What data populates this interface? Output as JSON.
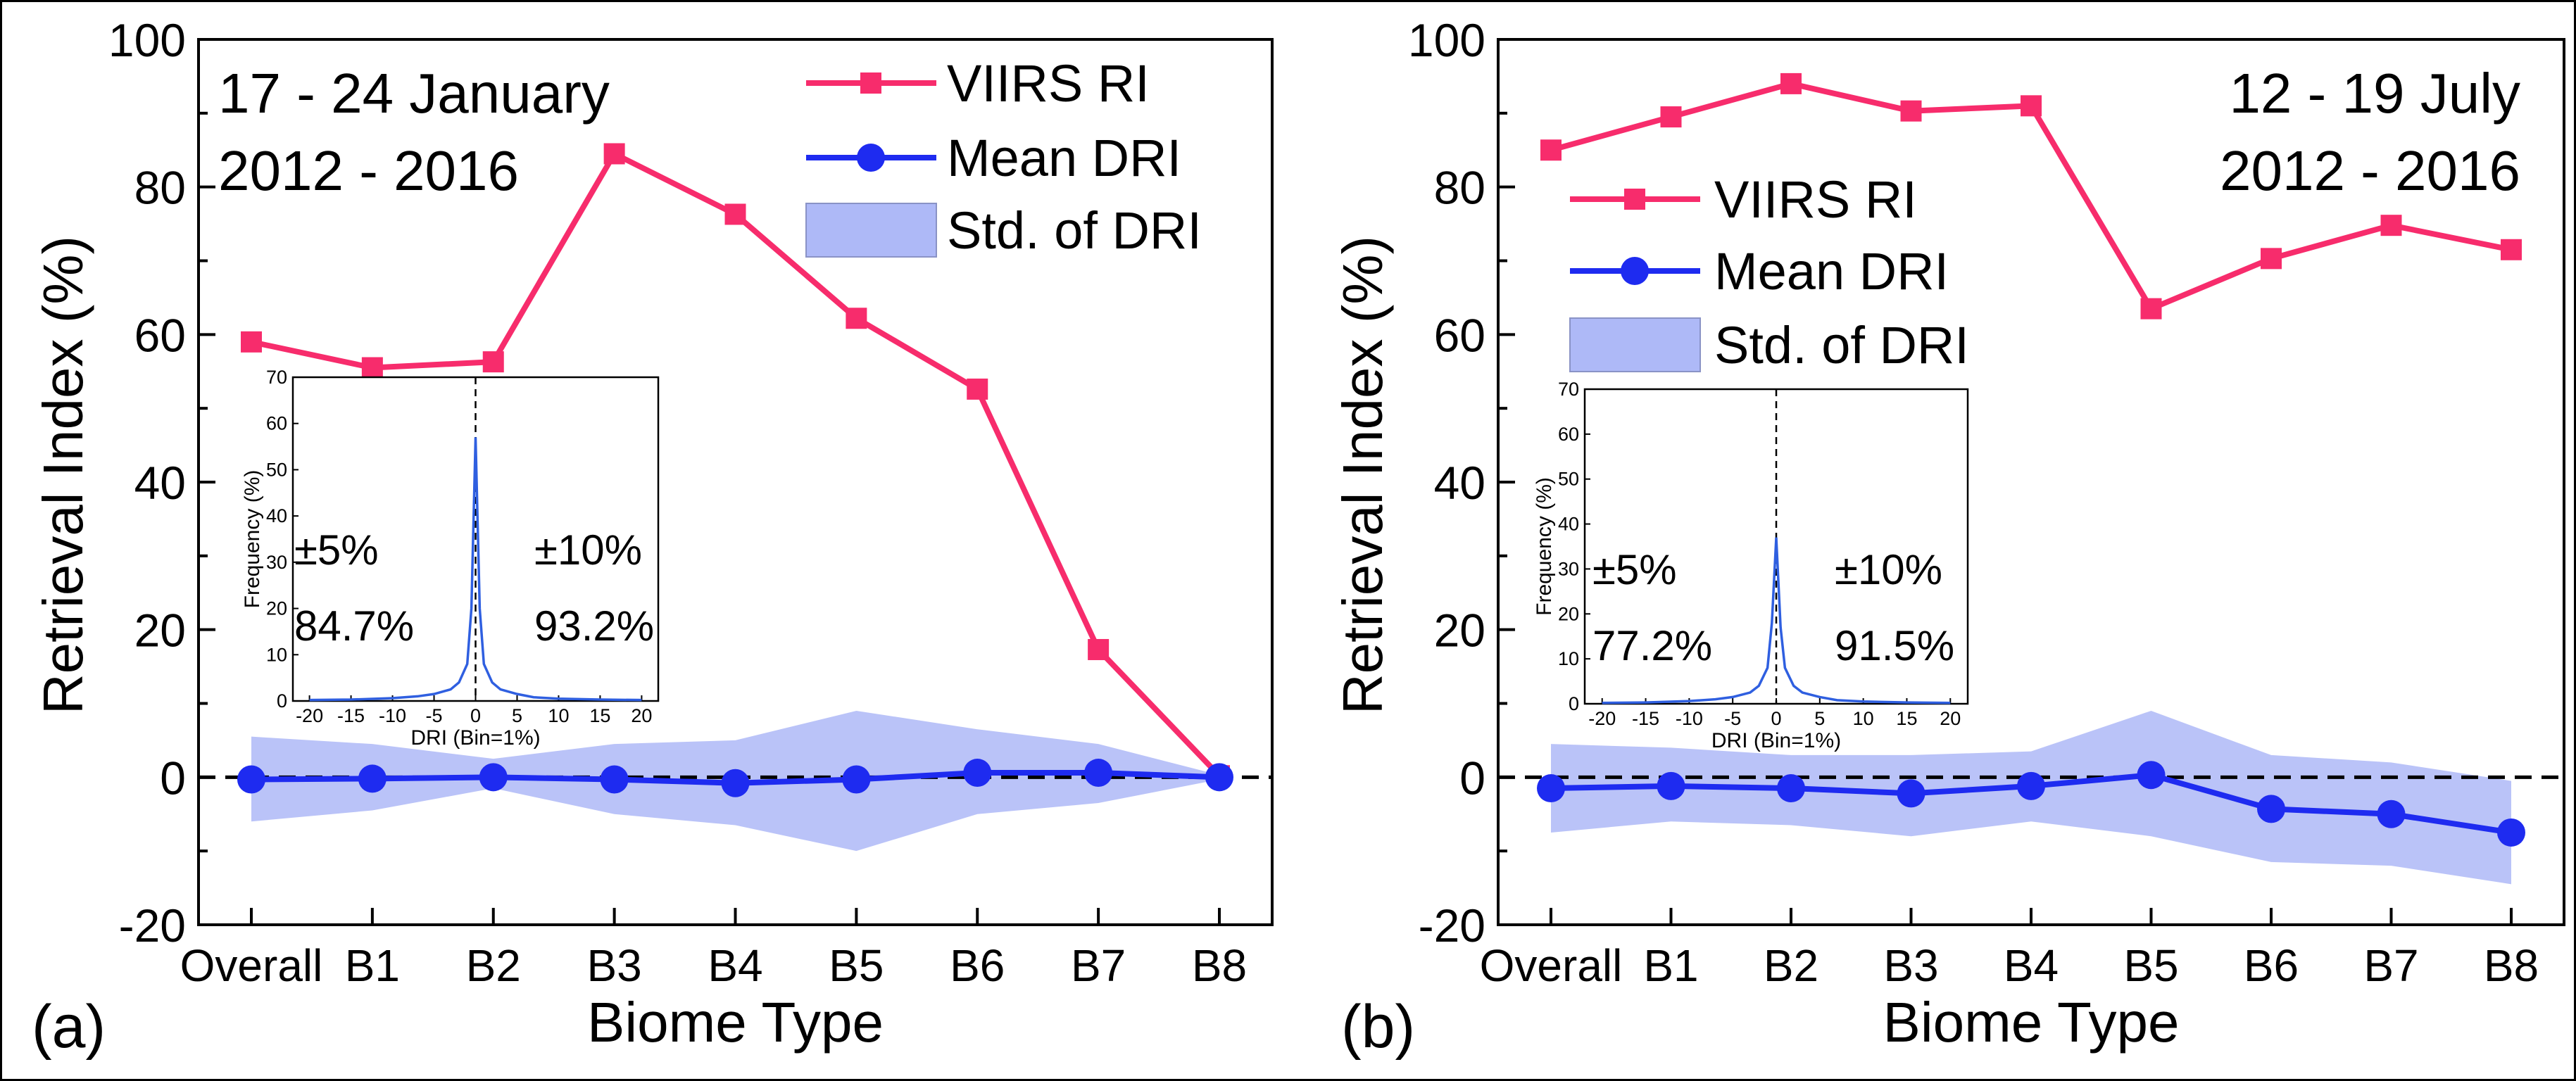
{
  "colors": {
    "ri": "#F72C6C",
    "dri": "#1E2BF0",
    "std_fill": "#AEB9F7",
    "inset_line": "#2F5FE0",
    "axis": "#000000"
  },
  "shared": {
    "xlabel": "Biome Type",
    "ylabel": "Retrieval Index (%)",
    "categories": [
      "Overall",
      "B1",
      "B2",
      "B3",
      "B4",
      "B5",
      "B6",
      "B7",
      "B8"
    ],
    "ylim": [
      -20,
      100
    ],
    "yticks": [
      -20,
      0,
      20,
      40,
      60,
      80,
      100
    ],
    "legend": {
      "ri": "VIIRS RI",
      "dri": "Mean DRI",
      "std": "Std. of DRI"
    },
    "inset": {
      "xlabel": "DRI (Bin=1%)",
      "ylabel": "Frequency (%)",
      "xlim": [
        -22,
        22
      ],
      "xticks": [
        -20,
        -15,
        -10,
        -5,
        0,
        5,
        10,
        15,
        20
      ],
      "ylim": [
        0,
        70
      ],
      "yticks": [
        0,
        10,
        20,
        30,
        40,
        50,
        60,
        70
      ],
      "label_5": "±5%",
      "label_10": "±10%"
    }
  },
  "chart_data": [
    {
      "type": "line",
      "panel_label": "(a)",
      "title_line1": "17 - 24 January",
      "title_line2": "2012 - 2016",
      "xlabel": "Biome Type",
      "ylabel": "Retrieval Index (%)",
      "ylim": [
        -20,
        100
      ],
      "series": [
        {
          "name": "VIIRS RI",
          "values": [
            59,
            55.5,
            56.3,
            84.5,
            76.3,
            62.2,
            52.6,
            17.3,
            0.2
          ]
        },
        {
          "name": "Mean DRI",
          "values": [
            -0.3,
            -0.2,
            0,
            -0.3,
            -0.8,
            -0.3,
            0.6,
            0.6,
            0
          ]
        },
        {
          "name": "Std. of DRI",
          "upper": [
            5.5,
            4.5,
            2.5,
            4.5,
            5,
            9,
            6.5,
            4.5,
            0.3
          ],
          "lower": [
            -6,
            -4.5,
            -1.5,
            -5,
            -6.5,
            -10,
            -5,
            -3.5,
            -0.3
          ]
        }
      ],
      "inset": {
        "type": "line",
        "x": [
          -20,
          -15,
          -10,
          -7,
          -5,
          -3,
          -2,
          -1,
          -0.5,
          0,
          0.5,
          1,
          2,
          3,
          5,
          7,
          10,
          15,
          20
        ],
        "y": [
          0.2,
          0.3,
          0.6,
          1,
          1.5,
          2.5,
          4,
          8,
          20,
          57,
          20,
          8,
          4,
          2.5,
          1.5,
          0.8,
          0.5,
          0.3,
          0.2
        ],
        "pct_5": "84.7%",
        "pct_10": "93.2%"
      }
    },
    {
      "type": "line",
      "panel_label": "(b)",
      "title_line1": "12 - 19 July",
      "title_line2": "2012 - 2016",
      "xlabel": "Biome Type",
      "ylabel": "Retrieval Index (%)",
      "ylim": [
        -20,
        100
      ],
      "series": [
        {
          "name": "VIIRS RI",
          "values": [
            85,
            89.5,
            94,
            90.3,
            91,
            63.5,
            70.3,
            74.8,
            71.5
          ]
        },
        {
          "name": "Mean DRI",
          "values": [
            -1.5,
            -1.2,
            -1.5,
            -2.2,
            -1.2,
            0.3,
            -4.3,
            -5,
            -7.5
          ]
        },
        {
          "name": "Std. of DRI",
          "upper": [
            4.5,
            4,
            3,
            3,
            3.5,
            9,
            3,
            2,
            -0.5
          ],
          "lower": [
            -7.5,
            -6,
            -6.5,
            -8,
            -6,
            -8,
            -11.5,
            -12,
            -14.5
          ]
        }
      ],
      "inset": {
        "type": "line",
        "x": [
          -20,
          -15,
          -10,
          -7,
          -5,
          -3,
          -2,
          -1,
          -0.5,
          0,
          0.5,
          1,
          2,
          3,
          5,
          7,
          10,
          15,
          20
        ],
        "y": [
          0.2,
          0.3,
          0.6,
          1,
          1.5,
          2.5,
          4,
          8,
          18,
          37,
          17,
          8,
          4,
          2.5,
          1.5,
          0.8,
          0.5,
          0.3,
          0.2
        ],
        "pct_5": "77.2%",
        "pct_10": "91.5%"
      }
    }
  ]
}
